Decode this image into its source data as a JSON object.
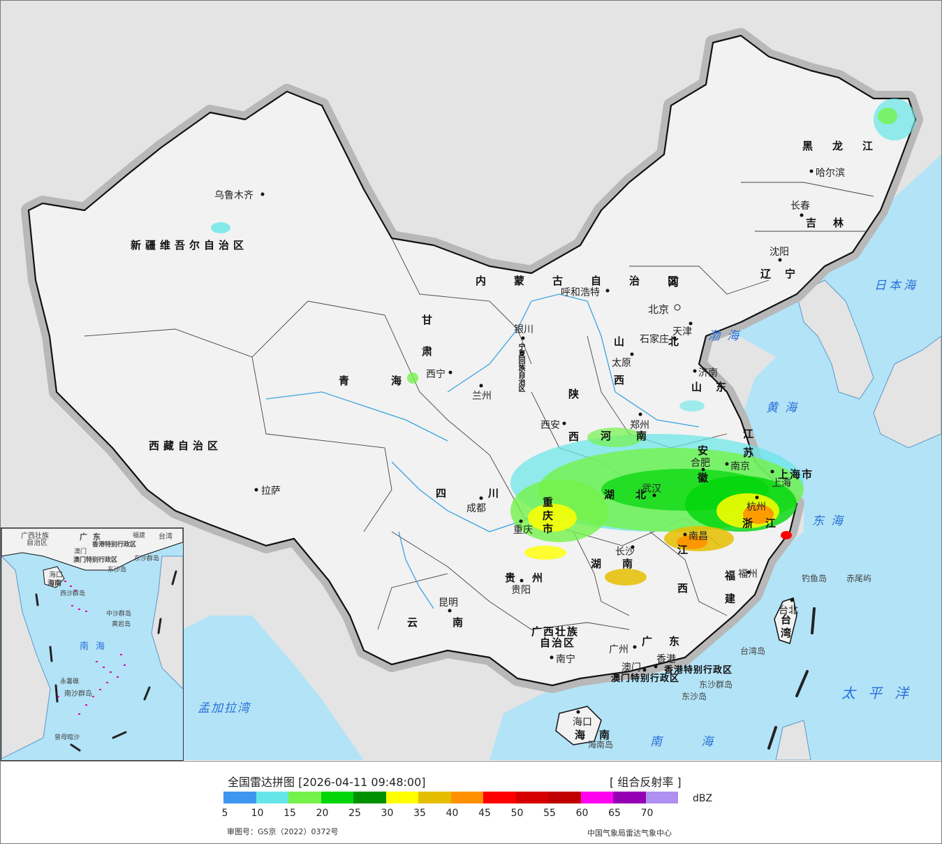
{
  "map": {
    "cities": [
      {
        "name": "乌鲁木齐"
      },
      {
        "name": "拉萨"
      },
      {
        "name": "西宁"
      },
      {
        "name": "兰州"
      },
      {
        "name": "银川"
      },
      {
        "name": "呼和浩特"
      },
      {
        "name": "北京"
      },
      {
        "name": "天津"
      },
      {
        "name": "石家庄"
      },
      {
        "name": "太原"
      },
      {
        "name": "济南"
      },
      {
        "name": "郑州"
      },
      {
        "name": "西安"
      },
      {
        "name": "成都"
      },
      {
        "name": "重庆"
      },
      {
        "name": "贵阳"
      },
      {
        "name": "昆明"
      },
      {
        "name": "南宁"
      },
      {
        "name": "广州"
      },
      {
        "name": "香港"
      },
      {
        "name": "澳门"
      },
      {
        "name": "海口"
      },
      {
        "name": "福州"
      },
      {
        "name": "台北"
      },
      {
        "name": "南昌"
      },
      {
        "name": "杭州"
      },
      {
        "name": "上海"
      },
      {
        "name": "南京"
      },
      {
        "name": "合肥"
      },
      {
        "name": "武汉"
      },
      {
        "name": "长沙"
      },
      {
        "name": "哈尔滨"
      },
      {
        "name": "长春"
      },
      {
        "name": "沈阳"
      }
    ],
    "provinces": [
      {
        "name": "新疆维吾尔自治区"
      },
      {
        "name": "西藏自治区"
      },
      {
        "name": "青海"
      },
      {
        "name": "甘肃"
      },
      {
        "name": "内蒙古自治区"
      },
      {
        "name": "四川"
      },
      {
        "name": "云南"
      },
      {
        "name": "贵州"
      },
      {
        "name": "广西壮族"
      },
      {
        "name": "自治区"
      },
      {
        "name": "广东"
      },
      {
        "name": "海南"
      },
      {
        "name": "湖南"
      },
      {
        "name": "湖北"
      },
      {
        "name": "江西"
      },
      {
        "name": "福建"
      },
      {
        "name": "浙江"
      },
      {
        "name": "安徽"
      },
      {
        "name": "江苏"
      },
      {
        "name": "山东"
      },
      {
        "name": "河南"
      },
      {
        "name": "山西"
      },
      {
        "name": "陕西"
      },
      {
        "name": "河北"
      },
      {
        "name": "辽宁"
      },
      {
        "name": "吉林"
      },
      {
        "name": "黑龙江"
      },
      {
        "name": "宁夏回族自治区"
      },
      {
        "name": "重庆市"
      },
      {
        "name": "上海市"
      },
      {
        "name": "香港特别行政区"
      },
      {
        "name": "澳门特别行政区"
      },
      {
        "name": "台湾"
      }
    ],
    "seas": [
      "渤海",
      "黄海",
      "东海",
      "南海",
      "日本海",
      "太平洋",
      "孟加拉湾"
    ],
    "islands": [
      "钓鱼岛",
      "赤尾屿",
      "台湾岛",
      "东沙群岛",
      "东沙岛",
      "海南岛"
    ],
    "inset": {
      "labels": [
        "广西壮族",
        "自治区",
        "广东",
        "福建",
        "台湾",
        "澳门",
        "香港特别行政区",
        "澳门特别行政区",
        "东沙群岛",
        "东沙岛",
        "海口",
        "海南",
        "西沙群岛",
        "中沙群岛",
        "黄岩岛",
        "南海",
        "永暑礁",
        "南沙群岛",
        "曾母暗沙"
      ]
    }
  },
  "legend": {
    "title": "全国雷达拼图 [2026-04-11 09:48:00]",
    "product": "[ 组合反射率 ]",
    "unit": "dBZ",
    "colors": [
      "#3f96f0",
      "#66e6e8",
      "#74f24a",
      "#00d60a",
      "#009100",
      "#ffff00",
      "#e6be00",
      "#ff9100",
      "#ff0000",
      "#d60000",
      "#c00000",
      "#ff00f0",
      "#9600b4",
      "#ad90f0"
    ],
    "ticks": [
      "5",
      "10",
      "15",
      "20",
      "25",
      "30",
      "35",
      "40",
      "45",
      "50",
      "55",
      "60",
      "65",
      "70"
    ],
    "approval": "审图号：GS京（2022）0372号",
    "organization": "中国气象局雷达气象中心"
  }
}
